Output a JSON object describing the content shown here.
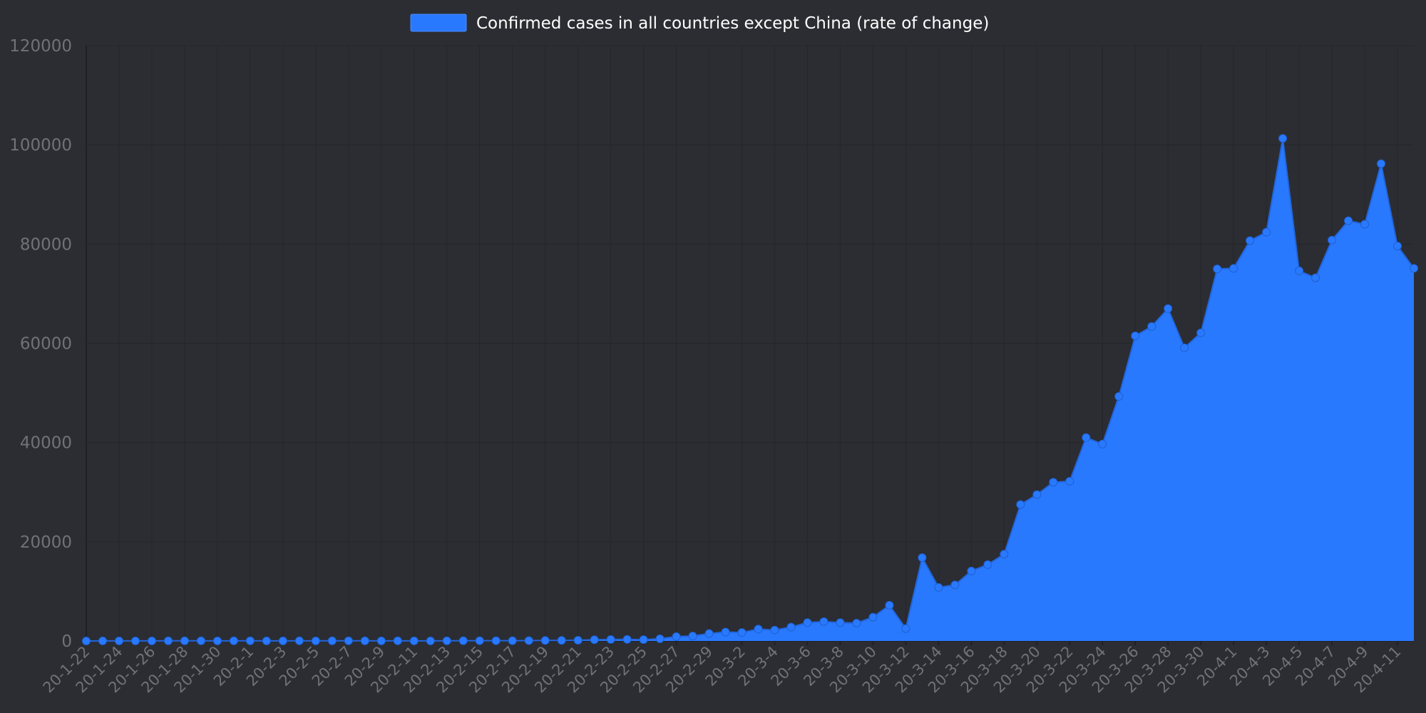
{
  "chart_data": {
    "type": "area",
    "legend": {
      "position": "top-center",
      "label": "Confirmed cases in all countries except China (rate of change)"
    },
    "colors": {
      "series": "#2979ff",
      "background": "#2b2d32",
      "grid": "#24262a",
      "tick_text": "#6f7278",
      "legend_text": "#ffffff"
    },
    "grid": true,
    "ylim": [
      0,
      120000
    ],
    "yticks": [
      "0",
      "20000",
      "40000",
      "60000",
      "80000",
      "100000",
      "120000"
    ],
    "xtick_labels": [
      "20-1-22",
      "20-1-24",
      "20-1-26",
      "20-1-28",
      "20-1-30",
      "20-2-1",
      "20-2-3",
      "20-2-5",
      "20-2-7",
      "20-2-9",
      "20-2-11",
      "20-2-13",
      "20-2-15",
      "20-2-17",
      "20-2-19",
      "20-2-21",
      "20-2-23",
      "20-2-25",
      "20-2-27",
      "20-2-29",
      "20-3-2",
      "20-3-4",
      "20-3-6",
      "20-3-8",
      "20-3-10",
      "20-3-12",
      "20-3-14",
      "20-3-16",
      "20-3-18",
      "20-3-20",
      "20-3-22",
      "20-3-24",
      "20-3-26",
      "20-3-28",
      "20-3-30",
      "20-4-1",
      "20-4-3",
      "20-4-5",
      "20-4-7",
      "20-4-9",
      "20-4-11"
    ],
    "x": [
      "20-1-22",
      "20-1-23",
      "20-1-24",
      "20-1-25",
      "20-1-26",
      "20-1-27",
      "20-1-28",
      "20-1-29",
      "20-1-30",
      "20-1-31",
      "20-2-1",
      "20-2-2",
      "20-2-3",
      "20-2-4",
      "20-2-5",
      "20-2-6",
      "20-2-7",
      "20-2-8",
      "20-2-9",
      "20-2-10",
      "20-2-11",
      "20-2-12",
      "20-2-13",
      "20-2-14",
      "20-2-15",
      "20-2-16",
      "20-2-17",
      "20-2-18",
      "20-2-19",
      "20-2-20",
      "20-2-21",
      "20-2-22",
      "20-2-23",
      "20-2-24",
      "20-2-25",
      "20-2-26",
      "20-2-27",
      "20-2-28",
      "20-2-29",
      "20-3-1",
      "20-3-2",
      "20-3-3",
      "20-3-4",
      "20-3-5",
      "20-3-6",
      "20-3-7",
      "20-3-8",
      "20-3-9",
      "20-3-10",
      "20-3-11",
      "20-3-12",
      "20-3-13",
      "20-3-14",
      "20-3-15",
      "20-3-16",
      "20-3-17",
      "20-3-18",
      "20-3-19",
      "20-3-20",
      "20-3-21",
      "20-3-22",
      "20-3-23",
      "20-3-24",
      "20-3-25",
      "20-3-26",
      "20-3-27",
      "20-3-28",
      "20-3-29",
      "20-3-30",
      "20-3-31",
      "20-4-1",
      "20-4-2",
      "20-4-3",
      "20-4-4",
      "20-4-5",
      "20-4-6",
      "20-4-7",
      "20-4-8",
      "20-4-9",
      "20-4-10",
      "20-4-11",
      "20-4-12"
    ],
    "series": [
      {
        "name": "Confirmed cases in all countries except China (rate of change)",
        "values": [
          0,
          10,
          20,
          10,
          20,
          30,
          30,
          40,
          20,
          30,
          30,
          20,
          20,
          40,
          20,
          30,
          40,
          30,
          20,
          30,
          20,
          10,
          40,
          50,
          60,
          60,
          50,
          80,
          100,
          120,
          150,
          260,
          300,
          320,
          270,
          450,
          880,
          1000,
          1500,
          1800,
          1700,
          2400,
          2200,
          2800,
          3700,
          3900,
          3700,
          3600,
          4800,
          7200,
          2500,
          16800,
          10800,
          11300,
          14100,
          15400,
          17500,
          27500,
          29500,
          32000,
          32200,
          41000,
          39700,
          49300,
          61500,
          63400,
          67000,
          59100,
          62100,
          75000,
          75100,
          80700,
          82400,
          101300,
          74600,
          73200,
          80800,
          84700,
          84000,
          96200,
          79600,
          75100
        ]
      }
    ]
  }
}
